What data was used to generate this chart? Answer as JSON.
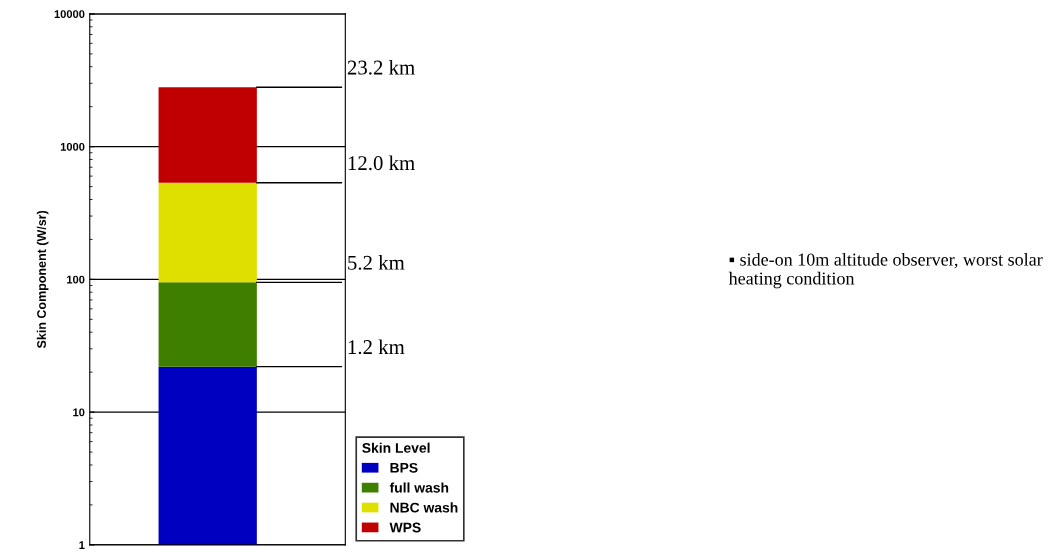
{
  "chart_data": {
    "type": "bar",
    "stacked": true,
    "log": true,
    "categories": [
      null
    ],
    "ylabel": "Skin Component (W/sr)",
    "ylim": [
      1,
      10000
    ],
    "yticks": [
      1,
      10,
      100,
      1000,
      10000
    ],
    "grid": "y",
    "tick_labels": "y",
    "legend": "bottom right",
    "legend_title": "Skin Level",
    "series": [
      {
        "name": "BPS",
        "color": "#0000c0",
        "values": [
          22
        ]
      },
      {
        "name": "full wash",
        "color": "#3f7f00",
        "values": [
          73
        ]
      },
      {
        "name": "NBC wash",
        "color": "#e0e000",
        "values": [
          440
        ]
      },
      {
        "name": "WPS",
        "color": "#c00000",
        "values": [
          2270
        ]
      }
    ],
    "annotations": [
      "23.2 km",
      "12.0 km",
      "5.2 km",
      "1.2 km",
      "▪ side-on 10m altitude observer, worst solar heating condition"
    ]
  }
}
